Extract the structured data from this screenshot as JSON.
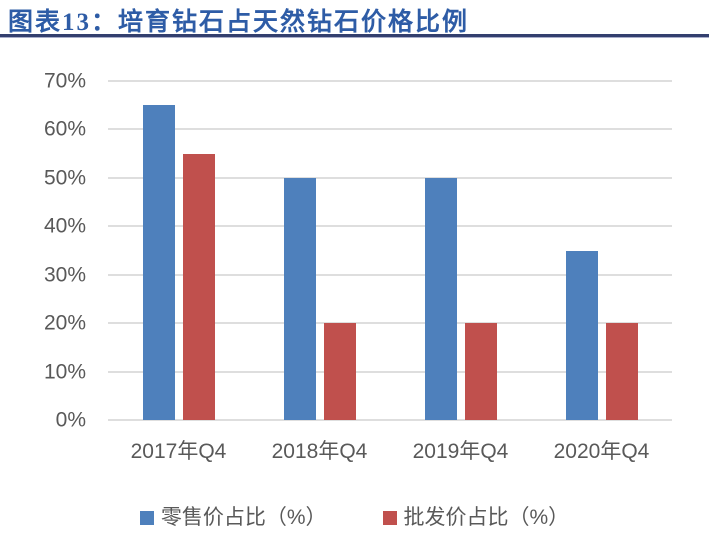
{
  "page": {
    "title": "图表13：培育钻石占天然钻石价格比例"
  },
  "colors": {
    "background": "#FFFFFF",
    "title_text": "#2E5CA6",
    "rule_dark": "#333F6E",
    "rule_light": "#A9AECB",
    "axis_text": "#595959",
    "gridline": "#DEDEDE",
    "series_blue": "#4E80BC",
    "series_red": "#C0504D"
  },
  "chart_data": {
    "type": "bar",
    "title": "图表13：培育钻石占天然钻石价格比例",
    "categories": [
      "2017年Q4",
      "2018年Q4",
      "2019年Q4",
      "2020年Q4"
    ],
    "series": [
      {
        "key": "retail",
        "name": "零售价占比（%）",
        "color": "#4E80BC",
        "values": [
          65,
          50,
          50,
          35
        ]
      },
      {
        "key": "wholesale",
        "name": "批发价占比（%）",
        "color": "#C0504D",
        "values": [
          55,
          20,
          20,
          20
        ]
      }
    ],
    "ylim": [
      0,
      70
    ],
    "yticks": [
      0,
      10,
      20,
      30,
      40,
      50,
      60,
      70
    ],
    "ytick_labels": [
      "0%",
      "10%",
      "20%",
      "30%",
      "40%",
      "50%",
      "60%",
      "70%"
    ],
    "grid": true,
    "legend_position": "bottom"
  }
}
